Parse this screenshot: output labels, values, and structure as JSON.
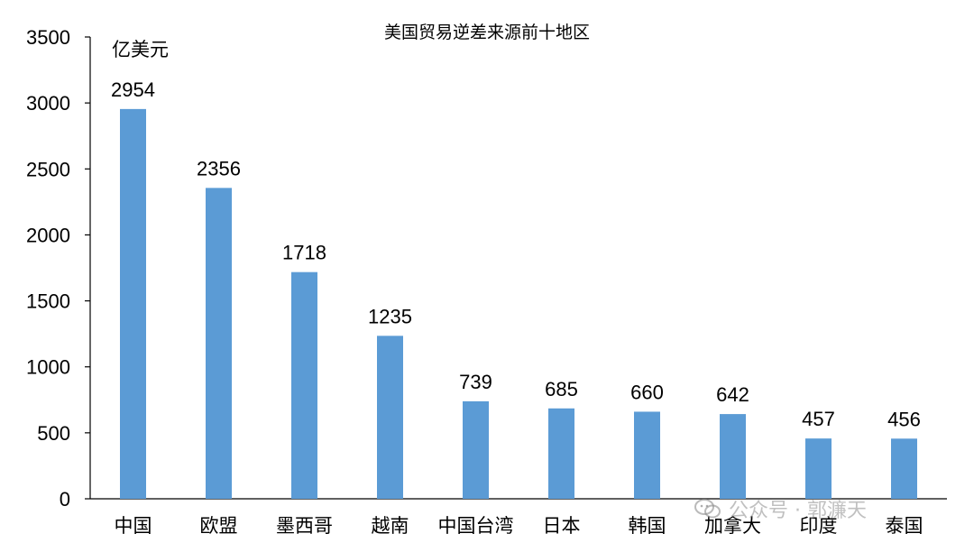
{
  "chart_data": {
    "type": "bar",
    "title": "美国贸易逆差来源前十地区",
    "unit": "亿美元",
    "categories": [
      "中国",
      "欧盟",
      "墨西哥",
      "越南",
      "中国台湾",
      "日本",
      "韩国",
      "加拿大",
      "印度",
      "泰国"
    ],
    "values": [
      2954,
      2356,
      1718,
      1235,
      739,
      685,
      660,
      642,
      457,
      456
    ],
    "ylim": [
      0,
      3500
    ],
    "yticks": [
      0,
      500,
      1000,
      1500,
      2000,
      2500,
      3000,
      3500
    ],
    "grid": false,
    "legend": "none",
    "bar_color": "#5B9BD5"
  },
  "watermark": {
    "icon": "wechat-icon",
    "text": "公众号 · 郭濂天"
  }
}
